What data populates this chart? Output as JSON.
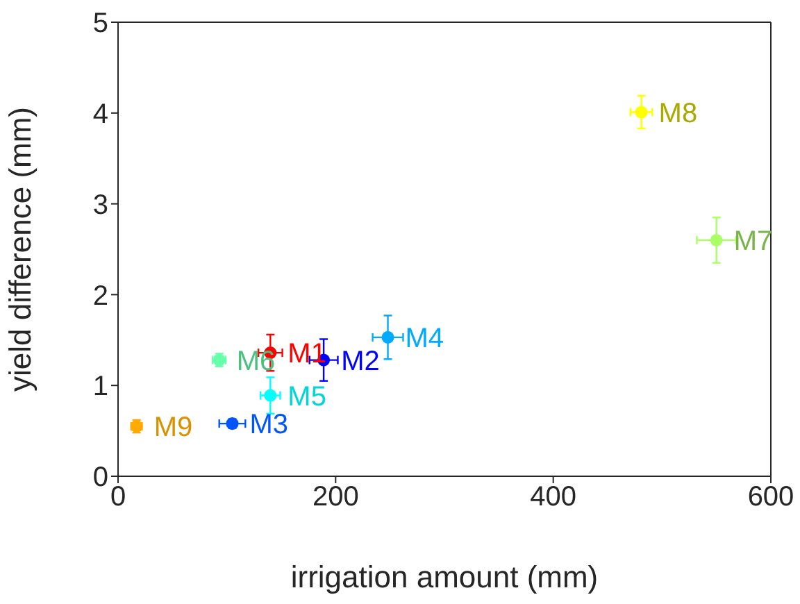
{
  "chart_data": {
    "type": "scatter",
    "xlabel": "irrigation amount (mm)",
    "ylabel": "yield difference (mm)",
    "xlim": [
      0,
      600
    ],
    "xticks": [
      0,
      200,
      400,
      600
    ],
    "ylim": [
      0,
      5
    ],
    "yticks": [
      0,
      1,
      2,
      3,
      4,
      5
    ],
    "grid": false,
    "legend": false,
    "marker": "circle",
    "series": [
      {
        "name": "M1",
        "color": "#ff0000",
        "x": [
          140
        ],
        "values": [
          1.36
        ],
        "errors": [
          0.2
        ],
        "xerrors": [
          11
        ]
      },
      {
        "name": "M2",
        "color": "#0000ff",
        "x": [
          189
        ],
        "values": [
          1.28
        ],
        "errors": [
          0.23
        ],
        "xerrors": [
          13
        ]
      },
      {
        "name": "M3",
        "color": "#0055ff",
        "x": [
          105
        ],
        "values": [
          0.58
        ],
        "errors": [
          0.05
        ],
        "xerrors": [
          12
        ]
      },
      {
        "name": "M4",
        "color": "#00aaff",
        "x": [
          248
        ],
        "values": [
          1.53
        ],
        "errors": [
          0.24
        ],
        "xerrors": [
          14
        ]
      },
      {
        "name": "M5",
        "color": "#00ffff",
        "x": [
          140
        ],
        "values": [
          0.89
        ],
        "errors": [
          0.2
        ],
        "xerrors": [
          9
        ]
      },
      {
        "name": "M6",
        "color": "#66ffaa",
        "x": [
          93
        ],
        "values": [
          1.28
        ],
        "errors": [
          0.07
        ],
        "xerrors": [
          6
        ]
      },
      {
        "name": "M7",
        "color": "#aaff66",
        "x": [
          550
        ],
        "values": [
          2.6
        ],
        "errors": [
          0.25
        ],
        "xerrors": [
          18
        ]
      },
      {
        "name": "M8",
        "color": "#ffff00",
        "x": [
          481
        ],
        "values": [
          4.01
        ],
        "errors": [
          0.18
        ],
        "xerrors": [
          10
        ]
      },
      {
        "name": "M9",
        "color": "#ffaa00",
        "x": [
          17
        ],
        "values": [
          0.55
        ],
        "errors": [
          0.07
        ],
        "xerrors": [
          5
        ]
      }
    ]
  }
}
